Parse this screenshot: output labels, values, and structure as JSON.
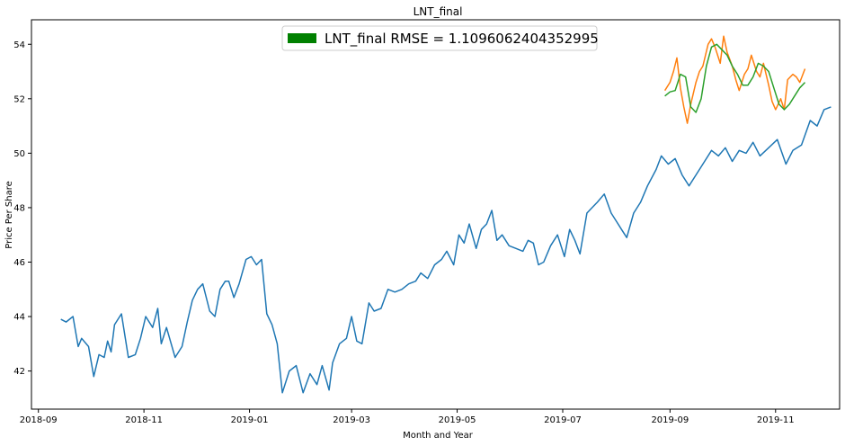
{
  "chart_data": {
    "type": "line",
    "title": "LNT_final",
    "xlabel": "Month and Year",
    "ylabel": "Price Per Share",
    "x_tick_labels": [
      "2018-09",
      "2018-11",
      "2019-01",
      "2019-03",
      "2019-05",
      "2019-07",
      "2019-09",
      "2019-11"
    ],
    "x_tick_dates": [
      "2018-09-01",
      "2018-11-01",
      "2019-01-01",
      "2019-03-01",
      "2019-05-01",
      "2019-07-01",
      "2019-09-01",
      "2019-11-01"
    ],
    "y_tick_labels": [
      "42",
      "44",
      "46",
      "48",
      "50",
      "52",
      "54"
    ],
    "y_ticks": [
      42,
      44,
      46,
      48,
      50,
      52,
      54
    ],
    "xlim": [
      "2018-08-28",
      "2019-12-08"
    ],
    "ylim": [
      40.6,
      54.9
    ],
    "grid": false,
    "legend": {
      "position": "top-center",
      "label": "LNT_final RMSE = 1.1096062404352995",
      "color": "#008000"
    },
    "series": [
      {
        "color": "#1f77b4",
        "points": [
          [
            "2018-09-14",
            43.9
          ],
          [
            "2018-09-17",
            43.8
          ],
          [
            "2018-09-21",
            44.0
          ],
          [
            "2018-09-24",
            42.9
          ],
          [
            "2018-09-26",
            43.2
          ],
          [
            "2018-09-30",
            42.9
          ],
          [
            "2018-10-03",
            41.8
          ],
          [
            "2018-10-06",
            42.6
          ],
          [
            "2018-10-09",
            42.5
          ],
          [
            "2018-10-11",
            43.1
          ],
          [
            "2018-10-13",
            42.7
          ],
          [
            "2018-10-15",
            43.7
          ],
          [
            "2018-10-19",
            44.1
          ],
          [
            "2018-10-23",
            42.5
          ],
          [
            "2018-10-27",
            42.6
          ],
          [
            "2018-10-30",
            43.2
          ],
          [
            "2018-11-02",
            44.0
          ],
          [
            "2018-11-06",
            43.6
          ],
          [
            "2018-11-09",
            44.3
          ],
          [
            "2018-11-11",
            43.0
          ],
          [
            "2018-11-14",
            43.6
          ],
          [
            "2018-11-19",
            42.5
          ],
          [
            "2018-11-23",
            42.9
          ],
          [
            "2018-11-26",
            43.8
          ],
          [
            "2018-11-29",
            44.6
          ],
          [
            "2018-12-02",
            45.0
          ],
          [
            "2018-12-05",
            45.2
          ],
          [
            "2018-12-09",
            44.2
          ],
          [
            "2018-12-12",
            44.0
          ],
          [
            "2018-12-15",
            45.0
          ],
          [
            "2018-12-18",
            45.3
          ],
          [
            "2018-12-20",
            45.3
          ],
          [
            "2018-12-23",
            44.7
          ],
          [
            "2018-12-26",
            45.2
          ],
          [
            "2018-12-30",
            46.1
          ],
          [
            "2019-01-02",
            46.2
          ],
          [
            "2019-01-05",
            45.9
          ],
          [
            "2019-01-08",
            46.1
          ],
          [
            "2019-01-11",
            44.1
          ],
          [
            "2019-01-14",
            43.7
          ],
          [
            "2019-01-17",
            43.0
          ],
          [
            "2019-01-20",
            41.2
          ],
          [
            "2019-01-24",
            42.0
          ],
          [
            "2019-01-28",
            42.2
          ],
          [
            "2019-02-01",
            41.2
          ],
          [
            "2019-02-05",
            41.9
          ],
          [
            "2019-02-09",
            41.5
          ],
          [
            "2019-02-12",
            42.2
          ],
          [
            "2019-02-16",
            41.3
          ],
          [
            "2019-02-18",
            42.3
          ],
          [
            "2019-02-22",
            43.0
          ],
          [
            "2019-02-26",
            43.2
          ],
          [
            "2019-03-01",
            44.0
          ],
          [
            "2019-03-04",
            43.1
          ],
          [
            "2019-03-07",
            43.0
          ],
          [
            "2019-03-11",
            44.5
          ],
          [
            "2019-03-14",
            44.2
          ],
          [
            "2019-03-18",
            44.3
          ],
          [
            "2019-03-22",
            45.0
          ],
          [
            "2019-03-26",
            44.9
          ],
          [
            "2019-03-30",
            45.0
          ],
          [
            "2019-04-03",
            45.2
          ],
          [
            "2019-04-07",
            45.3
          ],
          [
            "2019-04-10",
            45.6
          ],
          [
            "2019-04-14",
            45.4
          ],
          [
            "2019-04-18",
            45.9
          ],
          [
            "2019-04-22",
            46.1
          ],
          [
            "2019-04-25",
            46.4
          ],
          [
            "2019-04-29",
            45.9
          ],
          [
            "2019-05-02",
            47.0
          ],
          [
            "2019-05-05",
            46.7
          ],
          [
            "2019-05-08",
            47.4
          ],
          [
            "2019-05-12",
            46.5
          ],
          [
            "2019-05-15",
            47.2
          ],
          [
            "2019-05-18",
            47.4
          ],
          [
            "2019-05-21",
            47.9
          ],
          [
            "2019-05-24",
            46.8
          ],
          [
            "2019-05-27",
            47.0
          ],
          [
            "2019-05-31",
            46.6
          ],
          [
            "2019-06-04",
            46.5
          ],
          [
            "2019-06-08",
            46.4
          ],
          [
            "2019-06-11",
            46.8
          ],
          [
            "2019-06-14",
            46.7
          ],
          [
            "2019-06-17",
            45.9
          ],
          [
            "2019-06-20",
            46.0
          ],
          [
            "2019-06-24",
            46.6
          ],
          [
            "2019-06-28",
            47.0
          ],
          [
            "2019-07-02",
            46.2
          ],
          [
            "2019-07-05",
            47.2
          ],
          [
            "2019-07-08",
            46.8
          ],
          [
            "2019-07-11",
            46.3
          ],
          [
            "2019-07-15",
            47.8
          ],
          [
            "2019-07-18",
            48.0
          ],
          [
            "2019-07-21",
            48.2
          ],
          [
            "2019-07-25",
            48.5
          ],
          [
            "2019-07-29",
            47.8
          ],
          [
            "2019-08-01",
            47.5
          ],
          [
            "2019-08-04",
            47.2
          ],
          [
            "2019-08-07",
            46.9
          ],
          [
            "2019-08-11",
            47.8
          ],
          [
            "2019-08-15",
            48.2
          ],
          [
            "2019-08-19",
            48.8
          ],
          [
            "2019-08-24",
            49.4
          ],
          [
            "2019-08-27",
            49.9
          ],
          [
            "2019-08-31",
            49.6
          ],
          [
            "2019-09-04",
            49.8
          ],
          [
            "2019-09-08",
            49.2
          ],
          [
            "2019-09-12",
            48.8
          ],
          [
            "2019-09-16",
            49.2
          ],
          [
            "2019-09-21",
            49.7
          ],
          [
            "2019-09-25",
            50.1
          ],
          [
            "2019-09-29",
            49.9
          ],
          [
            "2019-10-03",
            50.2
          ],
          [
            "2019-10-07",
            49.7
          ],
          [
            "2019-10-11",
            50.1
          ],
          [
            "2019-10-15",
            50.0
          ],
          [
            "2019-10-19",
            50.4
          ],
          [
            "2019-10-23",
            49.9
          ],
          [
            "2019-10-28",
            50.2
          ],
          [
            "2019-11-02",
            50.5
          ],
          [
            "2019-11-07",
            49.6
          ],
          [
            "2019-11-11",
            50.1
          ],
          [
            "2019-11-16",
            50.3
          ],
          [
            "2019-11-21",
            51.2
          ],
          [
            "2019-11-25",
            51.0
          ],
          [
            "2019-11-29",
            51.6
          ],
          [
            "2019-12-03",
            51.7
          ]
        ]
      },
      {
        "color": "#ff7f0e",
        "points": [
          [
            "2019-08-29",
            52.3
          ],
          [
            "2019-09-01",
            52.6
          ],
          [
            "2019-09-03",
            53.0
          ],
          [
            "2019-09-05",
            53.5
          ],
          [
            "2019-09-07",
            52.4
          ],
          [
            "2019-09-09",
            51.7
          ],
          [
            "2019-09-11",
            51.1
          ],
          [
            "2019-09-13",
            51.8
          ],
          [
            "2019-09-16",
            52.6
          ],
          [
            "2019-09-18",
            53.0
          ],
          [
            "2019-09-20",
            53.2
          ],
          [
            "2019-09-23",
            54.0
          ],
          [
            "2019-09-25",
            54.2
          ],
          [
            "2019-09-27",
            53.9
          ],
          [
            "2019-09-30",
            53.3
          ],
          [
            "2019-10-02",
            54.3
          ],
          [
            "2019-10-04",
            53.7
          ],
          [
            "2019-10-07",
            53.2
          ],
          [
            "2019-10-09",
            52.7
          ],
          [
            "2019-10-11",
            52.3
          ],
          [
            "2019-10-14",
            52.9
          ],
          [
            "2019-10-16",
            53.1
          ],
          [
            "2019-10-18",
            53.6
          ],
          [
            "2019-10-21",
            53.0
          ],
          [
            "2019-10-23",
            52.8
          ],
          [
            "2019-10-25",
            53.3
          ],
          [
            "2019-10-28",
            52.5
          ],
          [
            "2019-10-30",
            51.9
          ],
          [
            "2019-11-01",
            51.6
          ],
          [
            "2019-11-04",
            52.0
          ],
          [
            "2019-11-06",
            51.6
          ],
          [
            "2019-11-08",
            52.7
          ],
          [
            "2019-11-11",
            52.9
          ],
          [
            "2019-11-13",
            52.8
          ],
          [
            "2019-11-15",
            52.6
          ],
          [
            "2019-11-18",
            53.1
          ]
        ]
      },
      {
        "color": "#2ca02c",
        "points": [
          [
            "2019-08-29",
            52.1
          ],
          [
            "2019-09-01",
            52.25
          ],
          [
            "2019-09-04",
            52.3
          ],
          [
            "2019-09-07",
            52.9
          ],
          [
            "2019-09-10",
            52.8
          ],
          [
            "2019-09-13",
            51.7
          ],
          [
            "2019-09-16",
            51.5
          ],
          [
            "2019-09-19",
            52.0
          ],
          [
            "2019-09-22",
            53.2
          ],
          [
            "2019-09-25",
            53.9
          ],
          [
            "2019-09-28",
            54.0
          ],
          [
            "2019-10-01",
            53.8
          ],
          [
            "2019-10-04",
            53.6
          ],
          [
            "2019-10-07",
            53.2
          ],
          [
            "2019-10-10",
            52.9
          ],
          [
            "2019-10-13",
            52.5
          ],
          [
            "2019-10-16",
            52.5
          ],
          [
            "2019-10-19",
            52.8
          ],
          [
            "2019-10-22",
            53.3
          ],
          [
            "2019-10-25",
            53.2
          ],
          [
            "2019-10-28",
            53.0
          ],
          [
            "2019-10-31",
            52.4
          ],
          [
            "2019-11-03",
            51.8
          ],
          [
            "2019-11-06",
            51.6
          ],
          [
            "2019-11-09",
            51.8
          ],
          [
            "2019-11-12",
            52.1
          ],
          [
            "2019-11-15",
            52.4
          ],
          [
            "2019-11-18",
            52.6
          ]
        ]
      }
    ]
  }
}
